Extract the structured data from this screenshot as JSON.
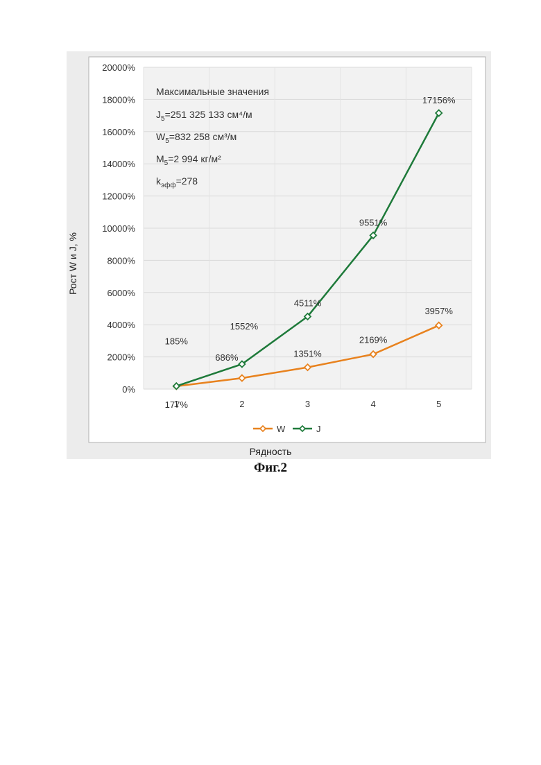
{
  "caption": "Фиг.2",
  "chart_data": {
    "type": "line",
    "categories": [
      "1",
      "2",
      "3",
      "4",
      "5"
    ],
    "xlabel": "Рядность",
    "ylabel": "Рост W и J, %",
    "ylim": [
      0,
      20000
    ],
    "y_ticks": [
      "0%",
      "2000%",
      "4000%",
      "6000%",
      "8000%",
      "10000%",
      "12000%",
      "14000%",
      "16000%",
      "18000%",
      "20000%"
    ],
    "grid": true,
    "legend_position": "bottom",
    "series": [
      {
        "name": "W",
        "color": "#E8821E",
        "values": [
          177,
          686,
          1351,
          2169,
          3957
        ],
        "labels": [
          "177%",
          "686%",
          "1351%",
          "2169%",
          "3957%"
        ]
      },
      {
        "name": "J",
        "color": "#1E7A3A",
        "values": [
          185,
          1552,
          4511,
          9551,
          17156
        ],
        "labels": [
          "185%",
          "1552%",
          "4511%",
          "9551%",
          "17156%"
        ]
      }
    ],
    "annotation": {
      "heading": "Максимальные значения",
      "lines": [
        {
          "main": "J",
          "sub": "5",
          "rest": "=251 325 133 см⁴/м"
        },
        {
          "main": "W",
          "sub": "5",
          "rest": "=832 258 см³/м"
        },
        {
          "main": "M",
          "sub": "5",
          "rest": "=2 994  кг/м²"
        },
        {
          "main": "k",
          "sub": "эфф",
          "rest": "=278"
        }
      ]
    }
  }
}
